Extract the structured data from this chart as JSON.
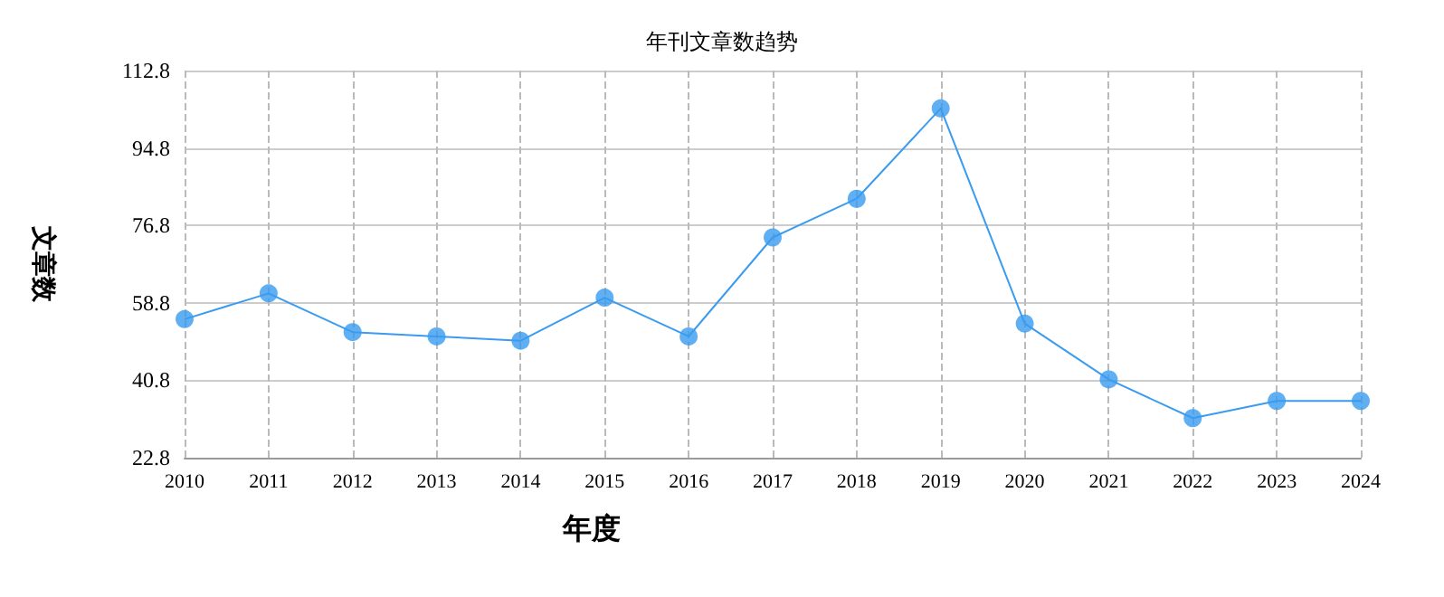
{
  "chart_data": {
    "type": "line",
    "title": "年刊文章数趋势",
    "xlabel": "年度",
    "ylabel": "文章数",
    "categories": [
      "2010",
      "2011",
      "2012",
      "2013",
      "2014",
      "2015",
      "2016",
      "2017",
      "2018",
      "2019",
      "2020",
      "2021",
      "2022",
      "2023",
      "2024"
    ],
    "series": [
      {
        "color": "#3a9bf0",
        "values": [
          55,
          61,
          52,
          51,
          50,
          60,
          51,
          74,
          83,
          104,
          54,
          41,
          32,
          36,
          36
        ]
      }
    ],
    "ylim": [
      22.8,
      112.8
    ],
    "yticks": [
      22.8,
      40.8,
      58.8,
      76.8,
      94.8,
      112.8
    ],
    "grid": true,
    "marker": "circle",
    "line_style": "solid"
  }
}
